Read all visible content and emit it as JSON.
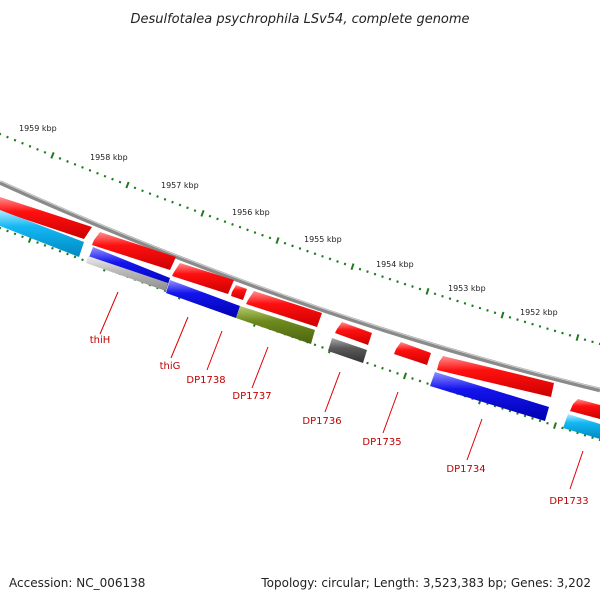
{
  "title": "Desulfotalea psychrophila LSv54, complete genome",
  "accession": "Accession: NC_006138",
  "topology": "Topology: circular; Length: 3,523,383 bp; Genes: 3,202",
  "colors": {
    "backbone": "#7a7a7a",
    "tick": "#1e7a1e",
    "label": "#c00000",
    "forward_cds": "#ff0000",
    "reverse_blue": "#1010e0",
    "reverse_cyan": "#10b8f0",
    "reverse_gray": "#b8b8b8",
    "reverse_olive": "#6e8a1e",
    "reverse_dark": "#555555"
  },
  "kbp_labels": [
    "1959 kbp",
    "1958 kbp",
    "1957 kbp",
    "1956 kbp",
    "1955 kbp",
    "1954 kbp",
    "1953 kbp",
    "1952 kbp"
  ],
  "gene_labels": [
    "thiH",
    "thiG",
    "DP1738",
    "DP1737",
    "DP1736",
    "DP1735",
    "DP1734",
    "DP1733"
  ]
}
